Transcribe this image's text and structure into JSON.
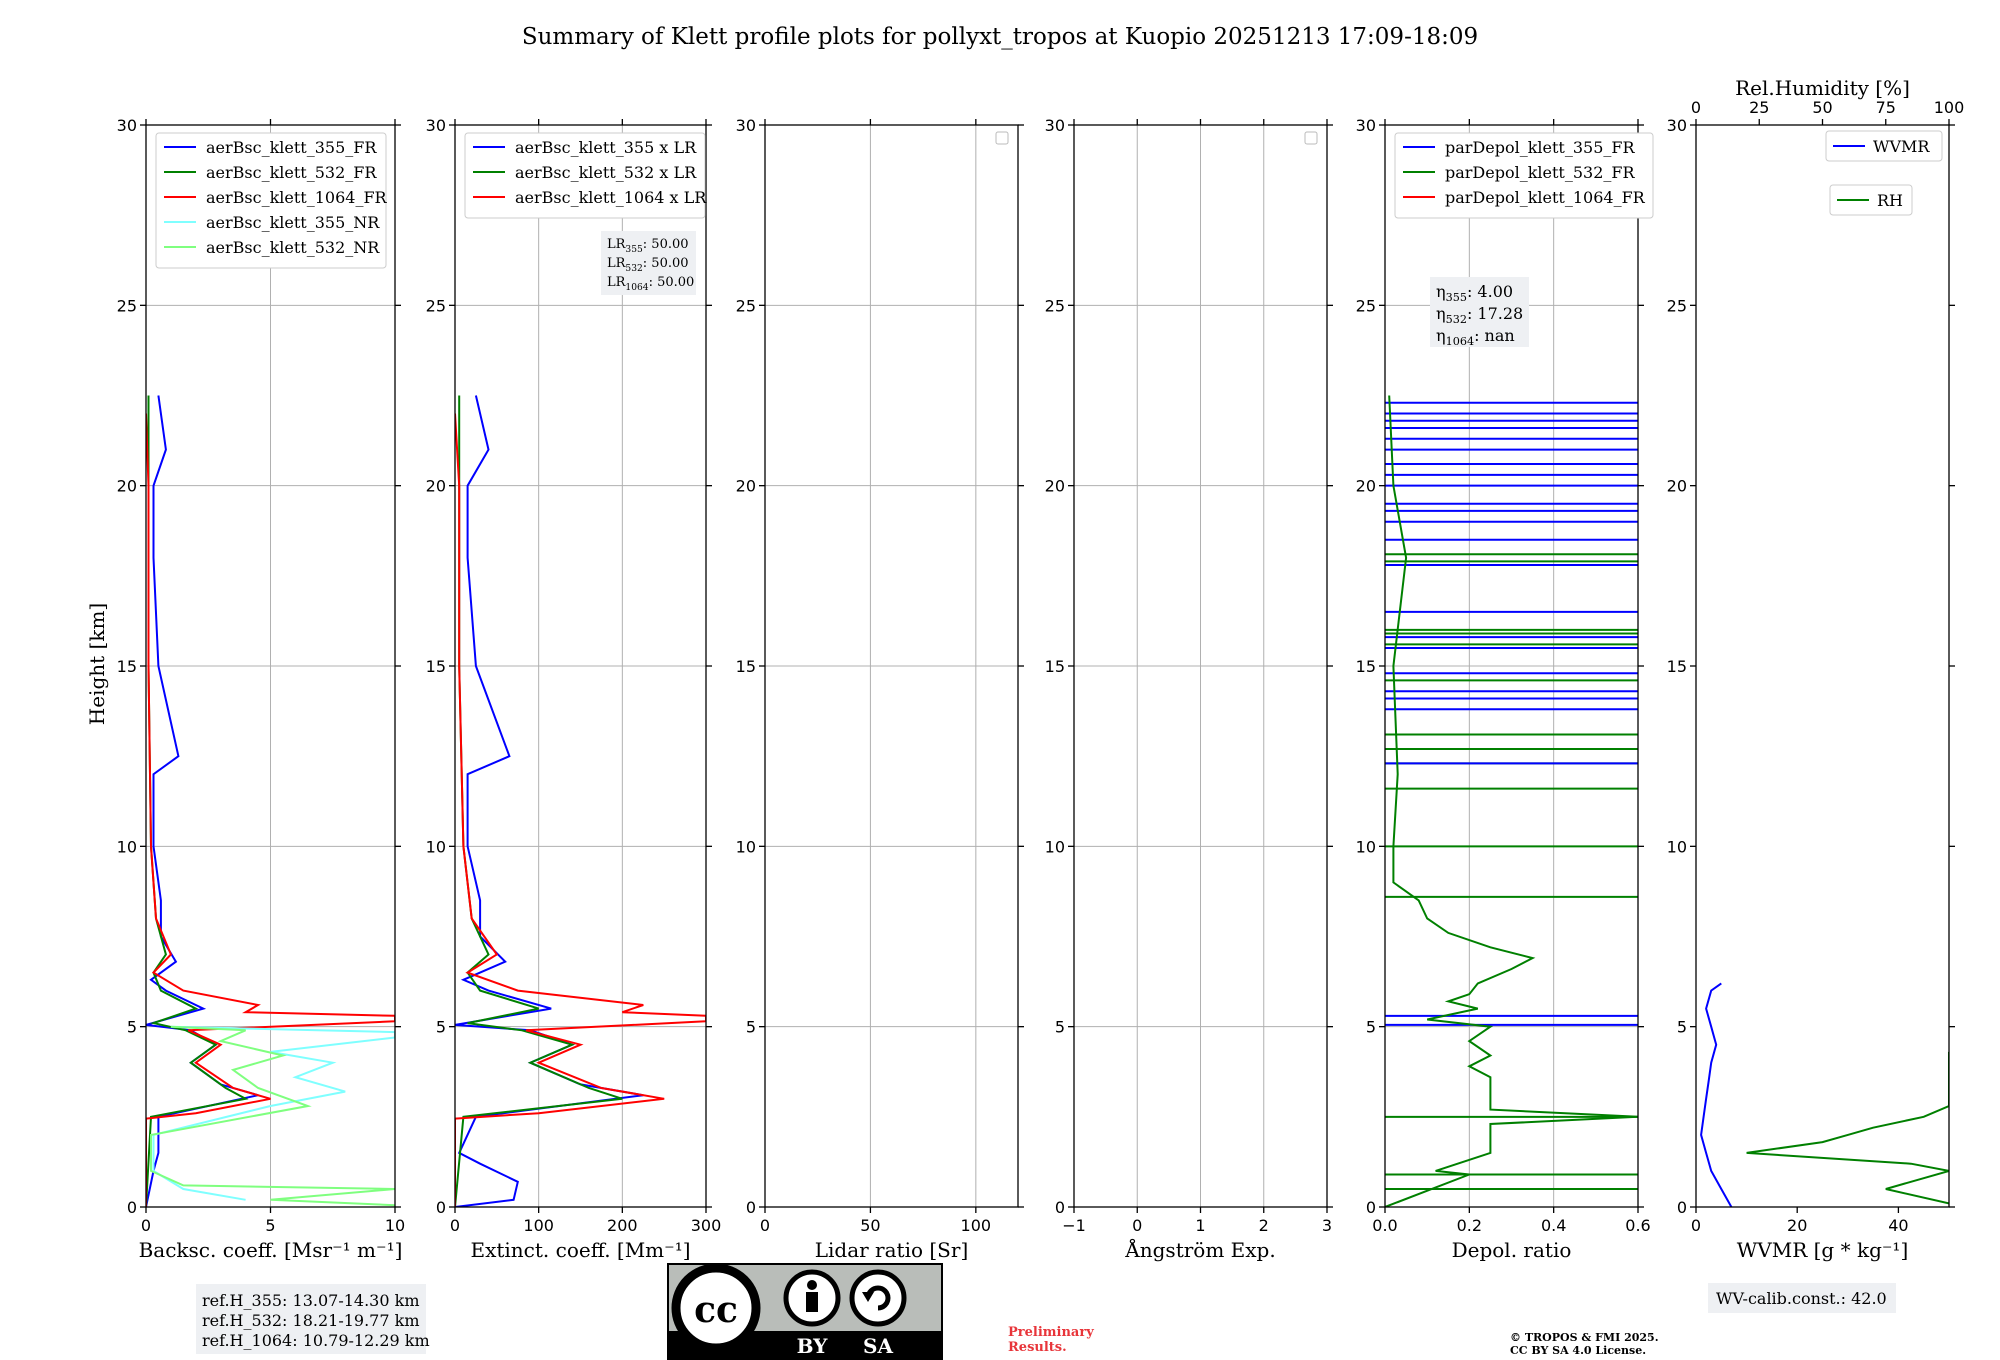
{
  "title": "Summary of Klett profile plots for pollyxt_tropos at Kuopio 20251213 17:09-18:09",
  "ylabel": "Height [km]",
  "colors": {
    "blue": "#0000ff",
    "green": "#008000",
    "red": "#ff0000",
    "cyan": "#7fffff",
    "lightgreen": "#7fff7f"
  },
  "chart_data": [
    {
      "type": "line",
      "name": "backscatter",
      "xlabel": "Backsc. coeff. [Msr⁻¹ m⁻¹]",
      "xlim": [
        0,
        10
      ],
      "xticks": [
        "0",
        "5",
        "10"
      ],
      "xtickvals": [
        0,
        5,
        10
      ],
      "ylim": [
        0,
        30
      ],
      "yticks": [
        "0",
        "5",
        "10",
        "15",
        "20",
        "25",
        "30"
      ],
      "grid": true,
      "legend_position": "top-left",
      "legend": [
        "aerBsc_klett_355_FR",
        "aerBsc_klett_532_FR",
        "aerBsc_klett_1064_FR",
        "aerBsc_klett_355_NR",
        "aerBsc_klett_532_NR"
      ],
      "series": [
        {
          "name": "aerBsc_klett_355_FR",
          "color": "blue",
          "h": [
            0,
            1,
            1.5,
            2.5,
            3.1,
            3.4,
            4,
            4.5,
            4.9,
            5.05,
            5.5,
            6,
            6.3,
            6.8,
            7.5,
            8.5,
            10,
            12,
            12.5,
            15,
            18,
            20,
            21,
            22.5
          ],
          "v": [
            0,
            0.3,
            0.5,
            0.5,
            4.5,
            3,
            1.8,
            2.8,
            1.8,
            0,
            2.3,
            0.8,
            0.2,
            1.2,
            0.6,
            0.6,
            0.3,
            0.3,
            1.3,
            0.5,
            0.3,
            0.3,
            0.8,
            0.5
          ]
        },
        {
          "name": "aerBsc_klett_532_FR",
          "color": "green",
          "h": [
            0,
            2.5,
            3,
            3.3,
            4,
            4.5,
            4.9,
            5.1,
            5.5,
            6,
            6.5,
            7,
            8,
            10,
            15,
            20,
            22.5
          ],
          "v": [
            0,
            0.2,
            4,
            3.2,
            1.8,
            2.8,
            1.6,
            0.3,
            2,
            0.6,
            0.3,
            0.8,
            0.4,
            0.2,
            0.1,
            0.1,
            0.1
          ]
        },
        {
          "name": "aerBsc_klett_1064_FR",
          "color": "red",
          "h": [
            0,
            2.45,
            2.6,
            3,
            3.3,
            4,
            4.5,
            4.9,
            5.15,
            5.3,
            5.4,
            5.6,
            6,
            6.5,
            7,
            8,
            10,
            15,
            20,
            22
          ],
          "v": [
            0,
            0,
            2,
            5,
            3.5,
            2,
            3,
            1.7,
            10,
            10,
            4,
            4.5,
            1.5,
            0.3,
            1,
            0.4,
            0.2,
            0.1,
            0.1,
            0
          ]
        },
        {
          "name": "aerBsc_klett_355_NR",
          "color": "cyan",
          "h": [
            0.2,
            0.5,
            1,
            2,
            2.8,
            3.2,
            3.6,
            4,
            4.3,
            4.7,
            4.85,
            5
          ],
          "v": [
            4,
            1.5,
            0.3,
            0.3,
            5,
            8,
            6,
            7.5,
            5,
            10,
            10,
            1
          ]
        },
        {
          "name": "aerBsc_klett_532_NR",
          "color": "lightgreen",
          "h": [
            0.05,
            0.2,
            0.5,
            0.6,
            1,
            2,
            2.8,
            3.3,
            3.8,
            4.2,
            4.6,
            4.9,
            5
          ],
          "v": [
            10,
            5,
            10,
            1.5,
            0.2,
            0.2,
            6.5,
            4.5,
            3.5,
            5.5,
            3,
            4,
            1
          ]
        }
      ]
    },
    {
      "type": "line",
      "name": "extinction",
      "xlabel": "Extinct. coeff. [Mm⁻¹]",
      "xlim": [
        0,
        300
      ],
      "xticks": [
        "0",
        "100",
        "200",
        "300"
      ],
      "xtickvals": [
        0,
        100,
        200,
        300
      ],
      "ylim": [
        0,
        30
      ],
      "grid": true,
      "legend_position": "top-left",
      "legend": [
        "aerBsc_klett_355 x LR",
        "aerBsc_klett_532 x LR",
        "aerBsc_klett_1064 x LR"
      ],
      "annotation": [
        {
          "label": "LR",
          "sub": "355",
          "value": ": 50.00"
        },
        {
          "label": "LR",
          "sub": "532",
          "value": ": 50.00"
        },
        {
          "label": "LR",
          "sub": "1064",
          "value": ": 50.00"
        }
      ],
      "series": [
        {
          "name": "aerBsc_klett_355 x LR",
          "color": "blue",
          "h": [
            0,
            0.2,
            0.7,
            1.2,
            1.5,
            2.5,
            3.1,
            3.4,
            4,
            4.5,
            4.9,
            5.05,
            5.5,
            6,
            6.3,
            6.8,
            7.5,
            8.5,
            10,
            12,
            12.5,
            15,
            18,
            20,
            21,
            22.5
          ],
          "v": [
            0,
            70,
            75,
            30,
            5,
            25,
            225,
            150,
            90,
            140,
            90,
            0,
            115,
            40,
            10,
            60,
            30,
            30,
            15,
            15,
            65,
            25,
            15,
            15,
            40,
            25
          ]
        },
        {
          "name": "aerBsc_klett_532 x LR",
          "color": "green",
          "h": [
            0,
            2.5,
            3,
            3.3,
            4,
            4.5,
            4.9,
            5.1,
            5.5,
            6,
            6.5,
            7,
            8,
            10,
            15,
            20,
            22.5
          ],
          "v": [
            0,
            10,
            200,
            160,
            90,
            140,
            80,
            15,
            100,
            30,
            15,
            40,
            20,
            10,
            5,
            5,
            5
          ]
        },
        {
          "name": "aerBsc_klett_1064 x LR",
          "color": "red",
          "h": [
            0,
            2.45,
            2.6,
            3,
            3.3,
            4,
            4.5,
            4.9,
            5.15,
            5.3,
            5.4,
            5.6,
            6,
            6.5,
            7,
            8,
            10,
            15,
            20,
            22
          ],
          "v": [
            0,
            0,
            100,
            250,
            175,
            100,
            150,
            85,
            300,
            300,
            200,
            225,
            75,
            15,
            50,
            20,
            10,
            5,
            5,
            0
          ]
        }
      ]
    },
    {
      "type": "line",
      "name": "lidar-ratio",
      "xlabel": "Lidar ratio [Sr]",
      "xlim": [
        0,
        120
      ],
      "xticks": [
        "0",
        "50",
        "100"
      ],
      "xtickvals": [
        0,
        50,
        100
      ],
      "ylim": [
        0,
        30
      ],
      "grid": true,
      "legend_position": "top-right",
      "legend": [],
      "series": []
    },
    {
      "type": "line",
      "name": "angstrom",
      "xlabel": "Ångström Exp.",
      "xlim": [
        -1,
        3
      ],
      "xticks": [
        "−1",
        "0",
        "1",
        "2",
        "3"
      ],
      "xtickvals": [
        -1,
        0,
        1,
        2,
        3
      ],
      "ylim": [
        0,
        30
      ],
      "grid": true,
      "legend_position": "top-right",
      "legend": [],
      "series": []
    },
    {
      "type": "line",
      "name": "depolarization",
      "xlabel": "Depol. ratio",
      "xlim": [
        0,
        0.6
      ],
      "xticks": [
        "0.0",
        "0.2",
        "0.4",
        "0.6"
      ],
      "xtickvals": [
        0,
        0.2,
        0.4,
        0.6
      ],
      "ylim": [
        0,
        30
      ],
      "grid": true,
      "legend_position": "top-left",
      "legend": [
        "parDepol_klett_355_FR",
        "parDepol_klett_532_FR",
        "parDepol_klett_1064_FR"
      ],
      "annotation": [
        {
          "label": "η",
          "sub": "355",
          "value": ": 4.00"
        },
        {
          "label": "η",
          "sub": "532",
          "value": ": 17.28"
        },
        {
          "label": "η",
          "sub": "1064",
          "value": ": nan"
        }
      ],
      "spikes_355": [
        5.05,
        5.3,
        12.3,
        13.8,
        14.1,
        14.3,
        14.8,
        15.5,
        15.8,
        16.5,
        17.8,
        18.5,
        19,
        19.3,
        19.5,
        20,
        20.3,
        20.6,
        21,
        21.3,
        21.6,
        21.8,
        22,
        22.3
      ],
      "spikes_532": [
        0.5,
        0.9,
        2.5,
        8.6,
        10,
        11.6,
        12.3,
        12.7,
        13.1,
        14.6,
        15.6,
        15.9,
        16,
        17.8,
        17.9,
        18.1
      ],
      "series": [
        {
          "name": "parDepol_klett_532_FR",
          "color": "green",
          "h": [
            0,
            0.9,
            1,
            1.5,
            2.3,
            2.5,
            2.7,
            3,
            3.6,
            3.9,
            4.2,
            4.6,
            5,
            5.2,
            5.5,
            5.7,
            5.9,
            6.2,
            6.6,
            6.9,
            7.2,
            7.6,
            8,
            8.5,
            9,
            10,
            12,
            15,
            18,
            20,
            22.5
          ],
          "v": [
            0,
            0.2,
            0.12,
            0.25,
            0.25,
            0.6,
            0.25,
            0.25,
            0.25,
            0.2,
            0.25,
            0.2,
            0.25,
            0.1,
            0.22,
            0.15,
            0.2,
            0.22,
            0.3,
            0.35,
            0.25,
            0.15,
            0.1,
            0.08,
            0.02,
            0.02,
            0.03,
            0.02,
            0.05,
            0.02,
            0.01
          ]
        }
      ]
    },
    {
      "type": "line",
      "name": "wvmr",
      "xlabel": "WVMR [g * kg⁻¹]",
      "xlim": [
        0,
        50
      ],
      "xticks": [
        "0",
        "20",
        "40"
      ],
      "xtickvals": [
        0,
        20,
        40
      ],
      "top_xlabel": "Rel.Humidity [%]",
      "top_xlim": [
        0,
        100
      ],
      "top_xticks": [
        "0",
        "25",
        "50",
        "75",
        "100"
      ],
      "top_xtickvals": [
        0,
        25,
        50,
        75,
        100
      ],
      "ylim": [
        0,
        30
      ],
      "grid": false,
      "legend": [
        "WVMR",
        "RH"
      ],
      "annotation_text": "WV-calib.const.: 42.0",
      "series": [
        {
          "name": "WVMR",
          "color": "blue",
          "h": [
            0,
            0.5,
            1,
            1.5,
            2,
            2.5,
            3,
            3.5,
            4,
            4.5,
            5,
            5.5,
            6,
            6.2
          ],
          "v": [
            7,
            5,
            3,
            2,
            1,
            1.5,
            2,
            2.5,
            3,
            4,
            3,
            2,
            3,
            5
          ]
        },
        {
          "name": "RH",
          "color": "green",
          "h": [
            0.1,
            0.5,
            1,
            1.2,
            1.5,
            1.8,
            2,
            2.2,
            2.5,
            2.8,
            3,
            3.5,
            4.3
          ],
          "v": [
            100,
            75,
            100,
            85,
            20,
            50,
            60,
            70,
            90,
            100,
            100,
            100,
            100
          ]
        }
      ]
    }
  ],
  "ref_box": [
    "ref.H_355: 13.07-14.30 km",
    "ref.H_532: 18.21-19.77 km",
    "ref.H_1064: 10.79-12.29 km"
  ],
  "license": {
    "cc": "cc",
    "by": "BY",
    "sa": "SA"
  },
  "preliminary": [
    "Preliminary",
    "Results."
  ],
  "copyright": [
    "© TROPOS & FMI 2025.",
    "CC BY SA 4.0 License."
  ]
}
